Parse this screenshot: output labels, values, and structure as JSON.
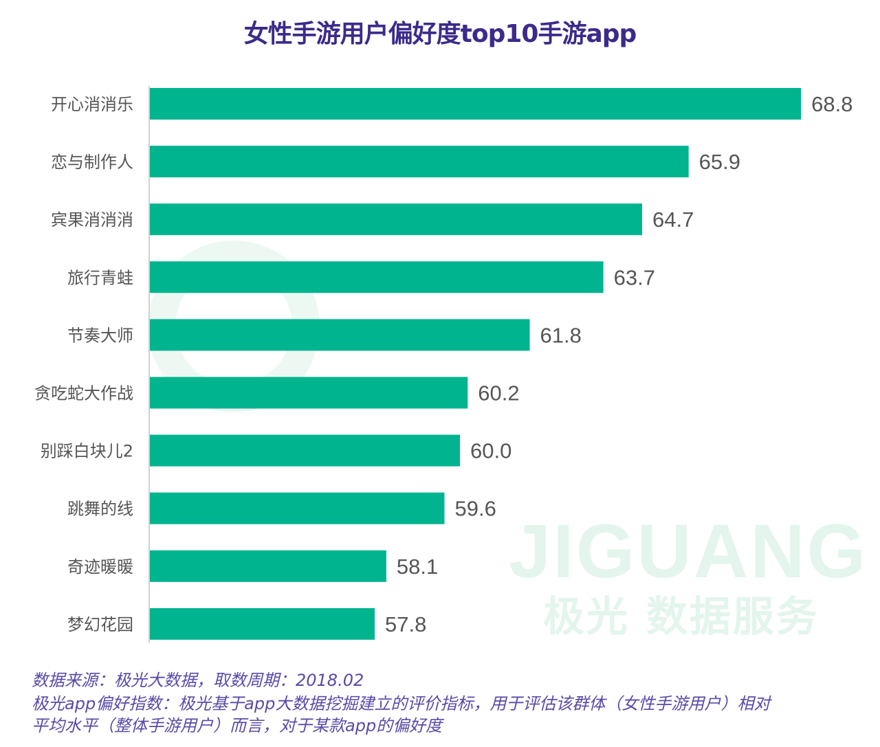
{
  "watermark": {
    "en": "JIGUANG",
    "cn": "极光 数据服务"
  },
  "chart_data": {
    "type": "bar",
    "orientation": "horizontal",
    "title": "女性手游用户偏好度top10手游app",
    "categories": [
      "开心消消乐",
      "恋与制作人",
      "宾果消消消",
      "旅行青蛙",
      "节奏大师",
      "贪吃蛇大作战",
      "别踩白块儿2",
      "跳舞的线",
      "奇迹暖暖",
      "梦幻花园"
    ],
    "values": [
      68.8,
      65.9,
      64.7,
      63.7,
      61.8,
      60.2,
      60.0,
      59.6,
      58.1,
      57.8
    ],
    "value_labels": [
      "68.8",
      "65.9",
      "64.7",
      "63.7",
      "61.8",
      "60.2",
      "60.0",
      "59.6",
      "58.1",
      "57.8"
    ],
    "xlim": [
      52,
      70.5
    ],
    "grid": false,
    "legend": "none",
    "colors": {
      "bar": "#00b48f",
      "title": "#3d2a8a",
      "footer": "#5a49a8",
      "label": "#555555"
    }
  },
  "footer": {
    "source": "数据来源：极光大数据，取数周期：2018.02",
    "note_line1": "极光app偏好指数：极光基于app大数据挖掘建立的评价指标，用于评估该群体（女性手游用户）相对",
    "note_line2": "平均水平（整体手游用户）而言，对于某款app的偏好度"
  }
}
